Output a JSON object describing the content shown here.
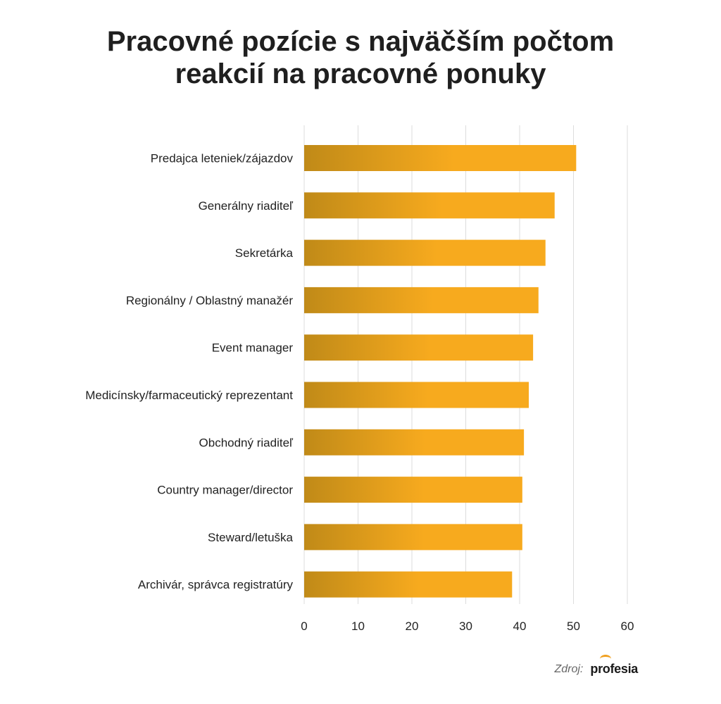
{
  "title_lines": [
    "Pracovné pozície s najväčším počtom",
    "reakcií na pracovné ponuky"
  ],
  "source": {
    "label": "Zdroj:",
    "logo_text": "profesia"
  },
  "colors": {
    "bar_start": "#c08a18",
    "bar_end": "#f7aa1e",
    "grid": "#dddddd",
    "text": "#222222"
  },
  "chart_data": {
    "type": "bar",
    "orientation": "horizontal",
    "categories": [
      "Predajca leteniek/zájazdov",
      "Generálny riaditeľ",
      "Sekretárka",
      "Regionálny / Oblastný manažér",
      "Event manager",
      "Medicínsky/farmaceutický reprezentant",
      "Obchodný riaditeľ",
      "Country manager/director",
      "Steward/letuška",
      "Archivár, správca registratúry"
    ],
    "values": [
      50.5,
      46.5,
      44.8,
      43.5,
      42.5,
      41.7,
      40.8,
      40.5,
      40.5,
      38.6
    ],
    "xlim": [
      0,
      60
    ],
    "xticks": [
      0,
      10,
      20,
      30,
      40,
      50,
      60
    ],
    "grid": true,
    "legend": "none"
  }
}
